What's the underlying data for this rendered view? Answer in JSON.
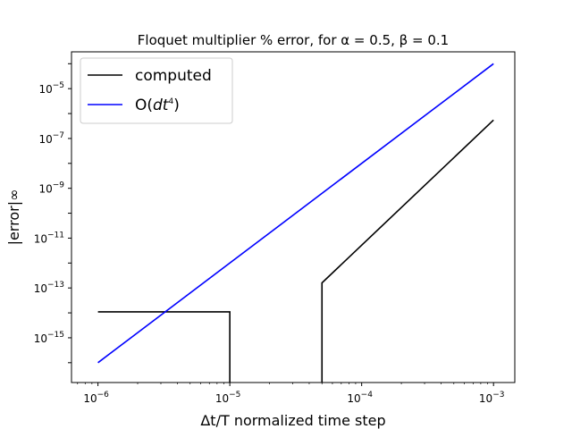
{
  "chart_data": {
    "type": "line",
    "title": "Floquet multiplier % error, for α = 0.5, β = 0.1",
    "xlabel": "Δt/T normalized time step",
    "ylabel": "|error|∞",
    "xscale": "log",
    "yscale": "log",
    "xlim": [
      6.3e-07,
      0.00145
    ],
    "ylim": [
      1.6e-17,
      0.0003
    ],
    "x_ticks": [
      1e-06,
      1e-05,
      0.0001,
      0.001
    ],
    "y_ticks": [
      1e-15,
      1e-13,
      1e-11,
      1e-09,
      1e-07,
      1e-05
    ],
    "grid": false,
    "legend": "top-left",
    "series": [
      {
        "name": "computed",
        "color": "#000000",
        "points": [
          [
            1e-06,
            1.1e-14
          ],
          [
            1e-05,
            1.1e-14
          ],
          [
            1e-05,
            1e-17
          ],
          [
            5e-05,
            1e-17
          ],
          [
            5e-05,
            1.6e-13
          ],
          [
            0.001,
            5.5e-07
          ]
        ]
      },
      {
        "name": "O(dt4)",
        "color": "#0000ff",
        "points": [
          [
            1e-06,
            1e-16
          ],
          [
            0.001,
            0.0001
          ]
        ]
      }
    ]
  }
}
